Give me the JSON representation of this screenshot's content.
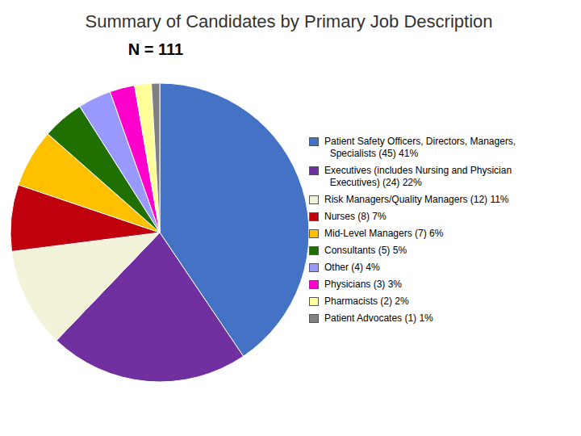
{
  "chart_data": {
    "type": "pie",
    "title": "Summary of Candidates by Primary Job Description",
    "subtitle": "N = 111",
    "categories": [
      "Patient Safety Officers, Directors, Managers,\n  Specialists (45) 41%",
      "Executives (includes Nursing and Physician\n  Executives) (24) 22%",
      "Risk Managers/Quality Managers (12) 11%",
      "Nurses (8) 7%",
      "Mid-Level Managers (7) 6%",
      "Consultants (5) 5%",
      "Other (4) 4%",
      "Physicians (3) 3%",
      "Pharmacists (2) 2%",
      "Patient Advocates (1) 1%"
    ],
    "values": [
      45,
      24,
      12,
      8,
      7,
      5,
      4,
      3,
      2,
      1
    ],
    "colors": [
      "#4472C4",
      "#7030A0",
      "#F2F2D8",
      "#C0000C",
      "#FFC000",
      "#1F7000",
      "#9999FF",
      "#FF00CC",
      "#FFFF99",
      "#808080"
    ],
    "legend": "right"
  }
}
